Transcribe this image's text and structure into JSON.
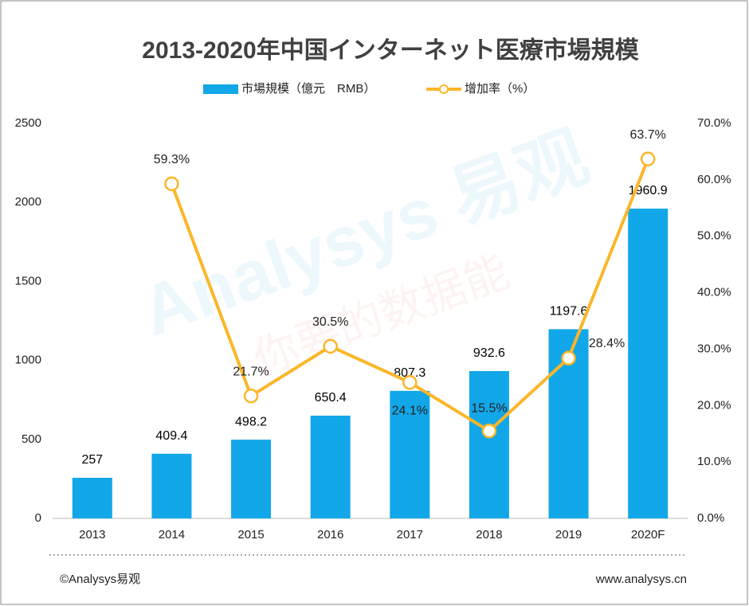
{
  "chart_data": {
    "type": "bar-line",
    "title": "2013-2020年中国インターネット医療市場規模",
    "categories": [
      "2013",
      "2014",
      "2015",
      "2016",
      "2017",
      "2018",
      "2019",
      "2020F"
    ],
    "series": [
      {
        "name": "市場規模（億元　RMB）",
        "color": "#12a7e8",
        "type": "bar",
        "values": [
          257,
          409.4,
          498.2,
          650.4,
          807.3,
          932.6,
          1197.6,
          1960.9
        ]
      },
      {
        "name": "增加率（%）",
        "color": "#fbb62a",
        "type": "line",
        "axis": "y2",
        "values": [
          null,
          59.3,
          21.7,
          30.5,
          24.1,
          15.5,
          28.4,
          63.7
        ],
        "value_labels": [
          null,
          "59.3%",
          "21.7%",
          "30.5%",
          "24.1%",
          "15.5%",
          "28.4%",
          "63.7%"
        ]
      }
    ],
    "ylim": [
      0,
      2500
    ],
    "yticks": [
      0,
      500,
      1000,
      1500,
      2000,
      2500
    ],
    "y2lim": [
      0,
      70
    ],
    "y2ticks": [
      {
        "value": 0,
        "label": "0.0%"
      },
      {
        "value": 10,
        "label": "10.0%"
      },
      {
        "value": 20,
        "label": "20.0%"
      },
      {
        "value": 30,
        "label": "30.0%"
      },
      {
        "value": 40,
        "label": "40.0%"
      },
      {
        "value": 50,
        "label": "50.0%"
      },
      {
        "value": 60,
        "label": "60.0%"
      },
      {
        "value": 70,
        "label": "70.0%"
      }
    ],
    "grid": false,
    "legend": "top",
    "watermark": [
      "Analysys 易观",
      "你要的数据能"
    ],
    "footer_left": "©Analysys易观",
    "footer_right": "www.analysys.cn"
  }
}
